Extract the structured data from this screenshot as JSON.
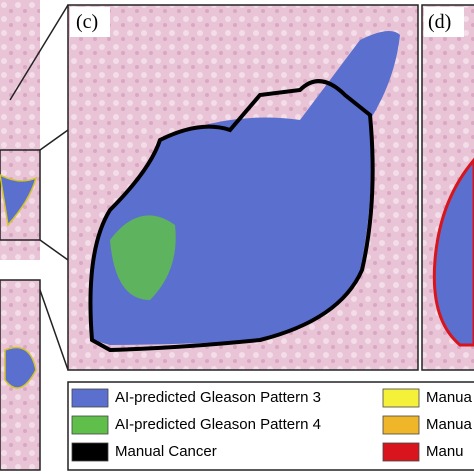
{
  "panels": [
    {
      "label": "(c)"
    },
    {
      "label": "(d)"
    }
  ],
  "legend": {
    "items": [
      {
        "label": "AI-predicted Gleason Pattern 3",
        "color": "#5b6fcf"
      },
      {
        "label": "AI-predicted Gleason Pattern 4",
        "color": "#5fbf4a"
      },
      {
        "label": "Manual Cancer",
        "color": "#000000"
      },
      {
        "label": "Manua",
        "color": "#f5f03a"
      },
      {
        "label": "Manua",
        "color": "#f0b62a"
      },
      {
        "label": "Manu",
        "color": "#d8141c"
      }
    ]
  }
}
